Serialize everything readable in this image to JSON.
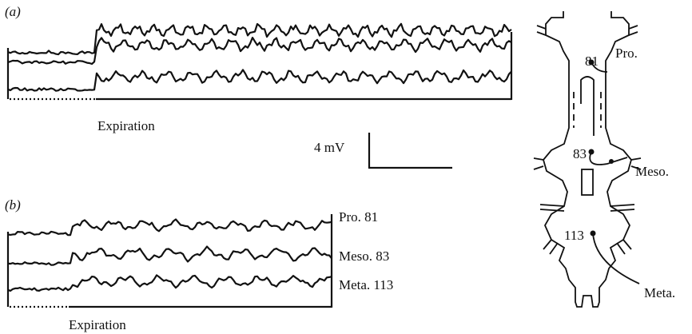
{
  "panel_a": {
    "label": "(a)",
    "phase": "Expiration",
    "scale": "4 mV"
  },
  "panel_b": {
    "label": "(b)",
    "phase": "Expiration",
    "traces": [
      "Pro. 81",
      "Meso. 83",
      "Meta. 113"
    ]
  },
  "diagram": {
    "ganglia": [
      {
        "unit": "81",
        "name": "Pro."
      },
      {
        "unit": "83",
        "name": "Meso."
      },
      {
        "unit": "113",
        "name": "Meta."
      }
    ]
  }
}
